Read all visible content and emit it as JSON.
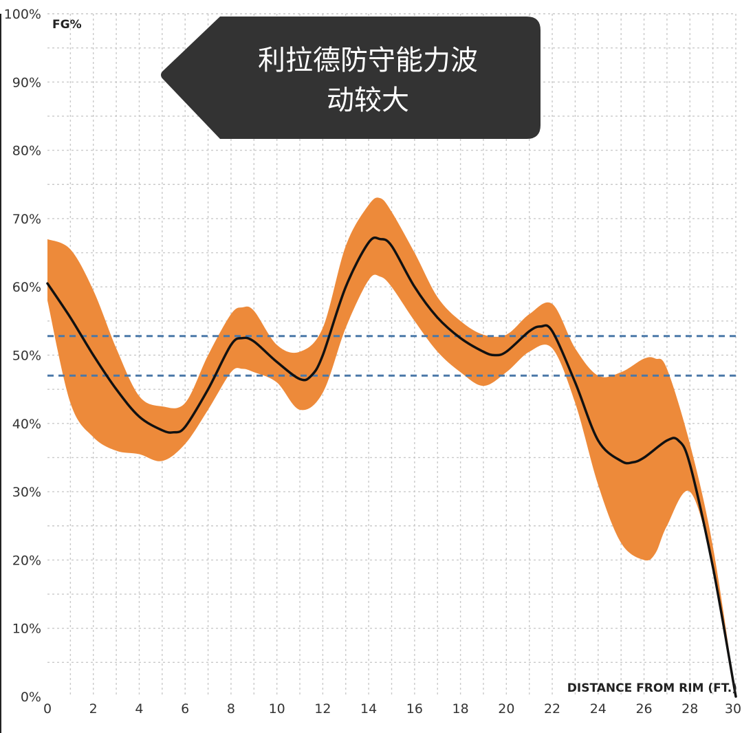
{
  "chart_data": {
    "type": "line",
    "title": "",
    "xlabel": "DISTANCE FROM RIM (FT.)",
    "ylabel": "FG%",
    "xlim": [
      0,
      30
    ],
    "ylim": [
      0,
      100
    ],
    "x_ticks": [
      0,
      2,
      4,
      6,
      8,
      10,
      12,
      14,
      16,
      18,
      20,
      22,
      24,
      26,
      28,
      30
    ],
    "y_ticks": [
      "0%",
      "10%",
      "20%",
      "30%",
      "40%",
      "50%",
      "60%",
      "70%",
      "80%",
      "90%",
      "100%"
    ],
    "grid": true,
    "series": [
      {
        "type": "line",
        "color": "#111111",
        "x": [
          0,
          1,
          2,
          3,
          4,
          5,
          5.5,
          6,
          7,
          8,
          8.5,
          9,
          10,
          11,
          11.5,
          12,
          13,
          14,
          14.5,
          15,
          16,
          17,
          18,
          19,
          19.5,
          20,
          21,
          21.5,
          22,
          23,
          24,
          25,
          25.5,
          26,
          27,
          27.5,
          28,
          29,
          30
        ],
        "y": [
          60.5,
          55.5,
          50,
          45,
          41,
          39,
          38.7,
          39.5,
          45,
          51.5,
          52.5,
          52,
          49,
          46.5,
          47,
          50,
          60,
          66.5,
          67,
          66,
          60,
          55.5,
          52.5,
          50.5,
          50,
          50.5,
          53.5,
          54.2,
          53.5,
          46,
          37.5,
          34.5,
          34.3,
          35,
          37.5,
          37.5,
          34,
          19,
          0
        ]
      },
      {
        "type": "band",
        "color": "#ed8a3a",
        "x": [
          0,
          1,
          2,
          3,
          4,
          5,
          6,
          7,
          8,
          8.5,
          9,
          10,
          11,
          12,
          13,
          14,
          14.5,
          15,
          16,
          17,
          18,
          19,
          20,
          21,
          22,
          23,
          24,
          25,
          26,
          26.5,
          27,
          28,
          29,
          30
        ],
        "upper": [
          67,
          65.5,
          59.5,
          51,
          44,
          42.5,
          43,
          50,
          56,
          57,
          56.5,
          51.5,
          50.5,
          54,
          66,
          72,
          73,
          71,
          65,
          58.5,
          55,
          53,
          53,
          56,
          57.5,
          51,
          47,
          47.5,
          49.5,
          49.5,
          48,
          37,
          22,
          0
        ],
        "lower": [
          58,
          43,
          38,
          36,
          35.5,
          34.5,
          37,
          42,
          47.5,
          48,
          47.5,
          46,
          42,
          44.5,
          54,
          61,
          61.5,
          60,
          55,
          50.5,
          47.5,
          45.5,
          47.5,
          50.5,
          51,
          43,
          31,
          22.5,
          20,
          21,
          25,
          30,
          19,
          0
        ]
      },
      {
        "type": "reference",
        "color": "#4a78a8",
        "x": [
          0,
          30
        ],
        "y": [
          52.8,
          52.8
        ]
      },
      {
        "type": "reference",
        "color": "#4a78a8",
        "x": [
          0,
          30
        ],
        "y": [
          47,
          47
        ]
      }
    ],
    "annotations": [
      {
        "text_lines": [
          "利拉德防守能力波",
          "动较大"
        ],
        "background": "#333333",
        "text_color": "#ffffff",
        "placement": "top-center"
      }
    ]
  }
}
